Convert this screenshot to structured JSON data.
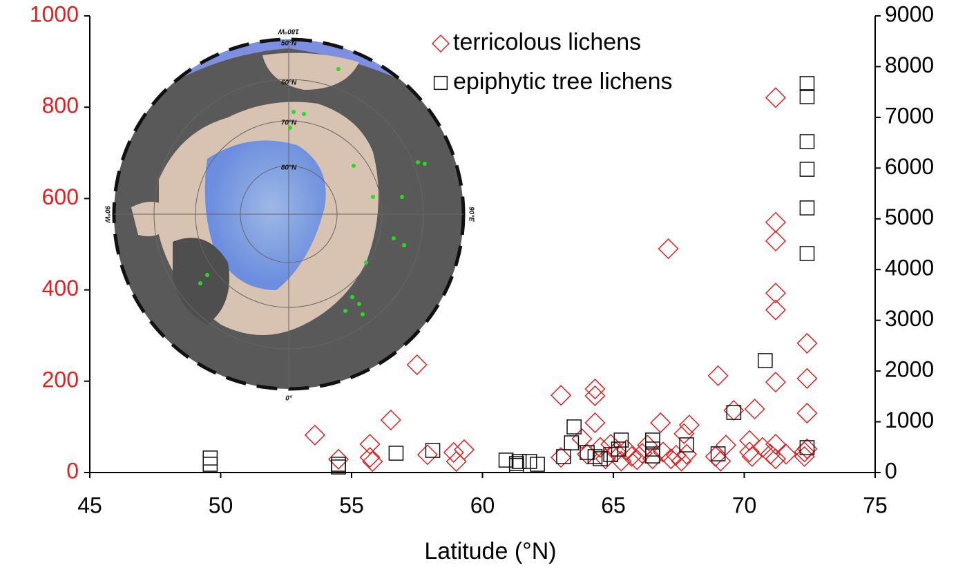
{
  "chart_data": {
    "type": "scatter",
    "xlabel": "Latitude (°N)",
    "xlim": [
      45,
      75
    ],
    "xticks": [
      45,
      50,
      55,
      60,
      65,
      70,
      75
    ],
    "ylim": [
      0,
      1000
    ],
    "yticks": [
      0,
      200,
      400,
      600,
      800,
      1000
    ],
    "ycolor": "#e02020",
    "y2lim": [
      0,
      9000
    ],
    "y2ticks": [
      0,
      1000,
      2000,
      3000,
      4000,
      5000,
      6000,
      7000,
      8000,
      9000
    ],
    "series": [
      {
        "name": "terricolous lichens",
        "color": "#e02020",
        "marker": "diamond",
        "x": [
          53.6,
          54.5,
          55.7,
          55.7,
          55.8,
          56.5,
          57.5,
          57.9,
          58.9,
          59.0,
          59.3,
          63.0,
          63.0,
          63.8,
          64.3,
          64.3,
          64.3,
          64.0,
          64.5,
          64.7,
          64.9,
          65.1,
          65.3,
          65.5,
          65.7,
          65.9,
          66.1,
          66.3,
          66.5,
          66.8,
          66.9,
          67.1,
          67.2,
          67.4,
          67.6,
          67.7,
          67.8,
          67.9,
          68.9,
          69.0,
          69.1,
          69.3,
          69.6,
          70.2,
          70.2,
          70.4,
          70.3,
          70.7,
          71.0,
          71.2,
          71.2,
          71.2,
          71.2,
          71.2,
          71.2,
          71.2,
          71.2,
          71.6,
          72.3,
          72.4,
          72.4,
          72.4,
          72.4,
          72.3
        ],
        "values": [
          82,
          29,
          62,
          33,
          24,
          115,
          236,
          39,
          44,
          24,
          50,
          169,
          33,
          74,
          183,
          168,
          109,
          40,
          55,
          30,
          62,
          45,
          25,
          50,
          35,
          28,
          42,
          60,
          30,
          109,
          45,
          490,
          30,
          38,
          25,
          85,
          40,
          104,
          35,
          212,
          25,
          60,
          136,
          70,
          45,
          139,
          35,
          55,
          40,
          821,
          548,
          507,
          393,
          356,
          198,
          62,
          30,
          40,
          45,
          283,
          206,
          130,
          52,
          35
        ]
      },
      {
        "name": "epiphytic tree lichens",
        "color": "#111111",
        "marker": "square",
        "axis": "y2",
        "x": [
          49.6,
          49.6,
          54.5,
          54.5,
          56.7,
          58.1,
          60.9,
          61.3,
          61.4,
          61.3,
          61.8,
          62.1,
          63.1,
          63.4,
          63.5,
          64.0,
          64.3,
          64.5,
          64.9,
          65.2,
          65.3,
          66.5,
          66.5,
          66.5,
          67.8,
          69.0,
          69.6,
          70.8,
          72.4,
          72.4,
          72.4,
          72.4,
          72.4,
          72.4,
          72.4
        ],
        "values": [
          286,
          163,
          163,
          109,
          381,
          436,
          245,
          177,
          218,
          140,
          218,
          163,
          313,
          585,
          899,
          395,
          313,
          272,
          354,
          463,
          640,
          640,
          463,
          327,
          545,
          368,
          1184,
          2206,
          490,
          4316,
          5215,
          5977,
          6522,
          7407,
          7666
        ]
      }
    ],
    "map_labels": [
      "180°W",
      "50°N",
      "60°N",
      "70°N",
      "80°N",
      "90°W",
      "90°E",
      "0°"
    ]
  }
}
